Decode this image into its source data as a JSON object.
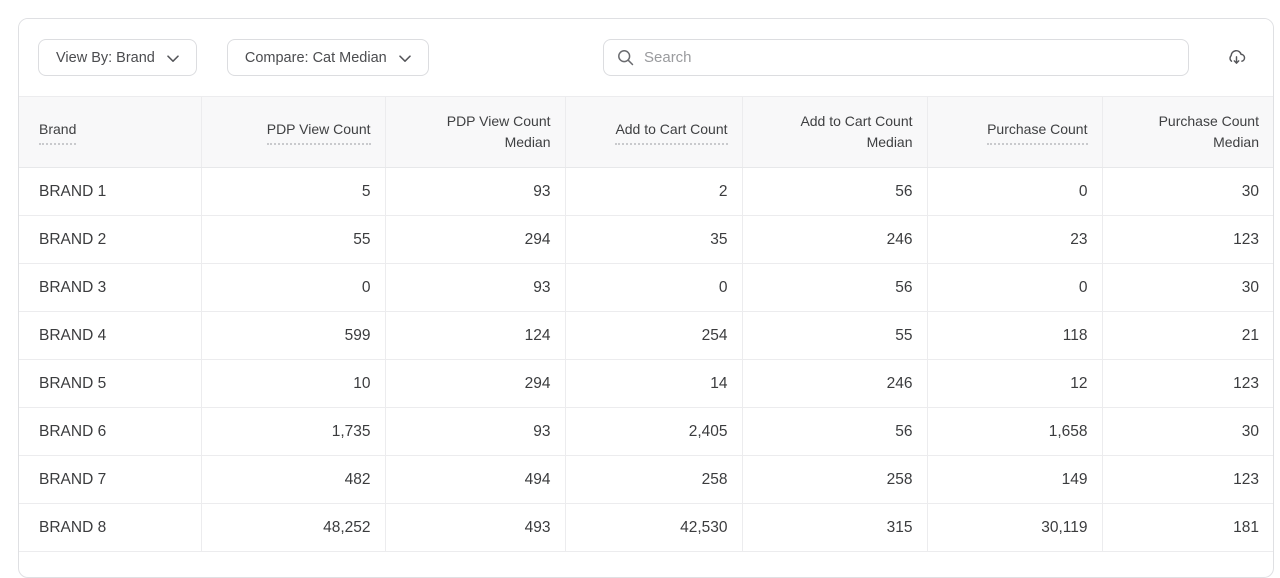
{
  "toolbar": {
    "view_by_label": "View By: Brand",
    "compare_label": "Compare: Cat Median",
    "search_placeholder": "Search",
    "download_icon": "cloud-download"
  },
  "table": {
    "columns": [
      {
        "key": "brand",
        "label": "Brand",
        "align": "left",
        "sortable": true
      },
      {
        "key": "pdp-view-count",
        "label": "PDP View Count",
        "align": "right",
        "sortable": true
      },
      {
        "key": "pdp-view-count-median",
        "label": "PDP View Count\nMedian",
        "align": "right",
        "sortable": false
      },
      {
        "key": "add-to-cart-count",
        "label": "Add to Cart Count",
        "align": "right",
        "sortable": true
      },
      {
        "key": "add-to-cart-count-median",
        "label": "Add to Cart Count\nMedian",
        "align": "right",
        "sortable": false
      },
      {
        "key": "purchase-count",
        "label": "Purchase Count",
        "align": "right",
        "sortable": true
      },
      {
        "key": "purchase-count-median",
        "label": "Purchase Count\nMedian",
        "align": "right",
        "sortable": false
      }
    ],
    "rows": [
      {
        "brand": "BRAND 1",
        "values": [
          "5",
          "93",
          "2",
          "56",
          "0",
          "30"
        ]
      },
      {
        "brand": "BRAND 2",
        "values": [
          "55",
          "294",
          "35",
          "246",
          "23",
          "123"
        ]
      },
      {
        "brand": "BRAND 3",
        "values": [
          "0",
          "93",
          "0",
          "56",
          "0",
          "30"
        ]
      },
      {
        "brand": "BRAND 4",
        "values": [
          "599",
          "124",
          "254",
          "55",
          "118",
          "21"
        ]
      },
      {
        "brand": "BRAND 5",
        "values": [
          "10",
          "294",
          "14",
          "246",
          "12",
          "123"
        ]
      },
      {
        "brand": "BRAND 6",
        "values": [
          "1,735",
          "93",
          "2,405",
          "56",
          "1,658",
          "30"
        ]
      },
      {
        "brand": "BRAND 7",
        "values": [
          "482",
          "494",
          "258",
          "258",
          "149",
          "123"
        ]
      },
      {
        "brand": "BRAND 8",
        "values": [
          "48,252",
          "493",
          "42,530",
          "315",
          "30,119",
          "181"
        ]
      }
    ]
  },
  "colors": {
    "panel_border": "#dfe0e3",
    "control_border": "#dcdde0",
    "header_bg": "#f8f8f9",
    "row_border": "#ececee",
    "text_primary": "#3b3c3e",
    "text_secondary": "#55565a",
    "placeholder": "#9a9b9e",
    "dotted_underline": "#c9cacd"
  }
}
